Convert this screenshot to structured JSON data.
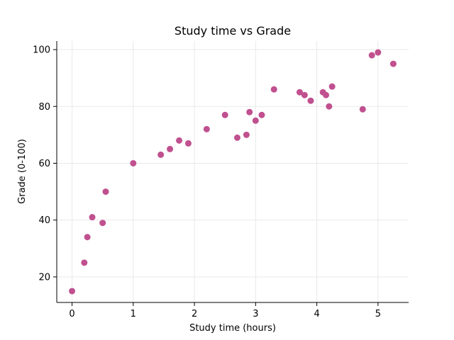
{
  "chart_data": {
    "type": "scatter",
    "title": "Study time vs Grade",
    "xlabel": "Study time (hours)",
    "ylabel": "Grade (0-100)",
    "xlim": [
      -0.25,
      5.5
    ],
    "ylim": [
      11,
      103
    ],
    "xticks": [
      0,
      1,
      2,
      3,
      4,
      5
    ],
    "yticks": [
      20,
      40,
      60,
      80,
      100
    ],
    "grid": true,
    "color": "#c0508f",
    "points": [
      {
        "x": 0.0,
        "y": 15
      },
      {
        "x": 0.2,
        "y": 25
      },
      {
        "x": 0.25,
        "y": 34
      },
      {
        "x": 0.33,
        "y": 41
      },
      {
        "x": 0.5,
        "y": 39
      },
      {
        "x": 0.55,
        "y": 50
      },
      {
        "x": 1.0,
        "y": 60
      },
      {
        "x": 1.45,
        "y": 63
      },
      {
        "x": 1.6,
        "y": 65
      },
      {
        "x": 1.75,
        "y": 68
      },
      {
        "x": 1.9,
        "y": 67
      },
      {
        "x": 2.2,
        "y": 72
      },
      {
        "x": 2.5,
        "y": 77
      },
      {
        "x": 2.7,
        "y": 69
      },
      {
        "x": 2.85,
        "y": 70
      },
      {
        "x": 2.9,
        "y": 78
      },
      {
        "x": 3.0,
        "y": 75
      },
      {
        "x": 3.1,
        "y": 77
      },
      {
        "x": 3.3,
        "y": 86
      },
      {
        "x": 3.72,
        "y": 85
      },
      {
        "x": 3.8,
        "y": 84
      },
      {
        "x": 3.9,
        "y": 82
      },
      {
        "x": 4.1,
        "y": 85
      },
      {
        "x": 4.15,
        "y": 84
      },
      {
        "x": 4.2,
        "y": 80
      },
      {
        "x": 4.25,
        "y": 87
      },
      {
        "x": 4.75,
        "y": 79
      },
      {
        "x": 4.9,
        "y": 98
      },
      {
        "x": 5.0,
        "y": 99
      },
      {
        "x": 5.25,
        "y": 95
      }
    ]
  }
}
